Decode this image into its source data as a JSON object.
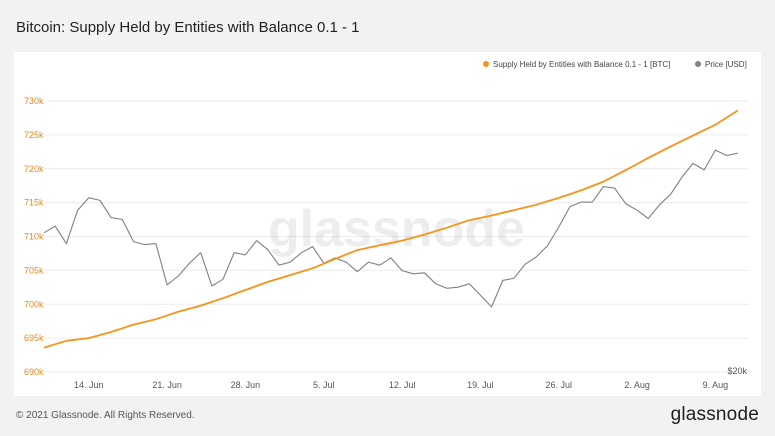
{
  "header": {
    "title": "Bitcoin: Supply Held by Entities with Balance 0.1 - 1"
  },
  "footer": {
    "copyright": "© 2021 Glassnode. All Rights Reserved.",
    "logo_text": "glassnode"
  },
  "watermark": "glassnode",
  "colors": {
    "supply": "#f7931a",
    "price": "#808080",
    "axis_left": "#e08a1e",
    "grid": "#ececec"
  },
  "chart_data": {
    "type": "line",
    "title": "Bitcoin: Supply Held by Entities with Balance 0.1 - 1",
    "legend_position": "top-right",
    "grid": true,
    "x_tick_labels": [
      "14. Jun",
      "21. Jun",
      "28. Jun",
      "5. Jul",
      "12. Jul",
      "19. Jul",
      "26. Jul",
      "2. Aug",
      "9. Aug"
    ],
    "x_range": [
      "2021-06-10",
      "2021-08-12"
    ],
    "y_left": {
      "ticks": [
        "690k",
        "695k",
        "700k",
        "705k",
        "710k",
        "715k",
        "720k",
        "725k",
        "730k"
      ],
      "range": [
        690000,
        730000
      ]
    },
    "y_right": {
      "ticks": [
        "$20k"
      ],
      "scale": "log"
    },
    "series": [
      {
        "name": "Supply Held by Entities with Balance 0.1 - 1 [BTC]",
        "axis": "left",
        "x": [
          "2021-06-10",
          "2021-06-12",
          "2021-06-14",
          "2021-06-16",
          "2021-06-18",
          "2021-06-20",
          "2021-06-22",
          "2021-06-24",
          "2021-06-26",
          "2021-06-28",
          "2021-06-30",
          "2021-07-02",
          "2021-07-04",
          "2021-07-06",
          "2021-07-08",
          "2021-07-10",
          "2021-07-12",
          "2021-07-14",
          "2021-07-16",
          "2021-07-18",
          "2021-07-20",
          "2021-07-22",
          "2021-07-24",
          "2021-07-26",
          "2021-07-28",
          "2021-07-30",
          "2021-08-01",
          "2021-08-03",
          "2021-08-05",
          "2021-08-07",
          "2021-08-09",
          "2021-08-11"
        ],
        "values": [
          693600,
          694600,
          695000,
          695900,
          697000,
          697800,
          698900,
          699800,
          700900,
          702100,
          703300,
          704300,
          705300,
          706700,
          708000,
          708700,
          709400,
          710300,
          711300,
          712400,
          713100,
          713900,
          714700,
          715700,
          716800,
          718100,
          719800,
          721600,
          723300,
          724900,
          726500,
          728600
        ]
      },
      {
        "name": "Price [USD]",
        "axis": "right",
        "x": [
          "2021-06-10",
          "2021-06-11",
          "2021-06-12",
          "2021-06-13",
          "2021-06-14",
          "2021-06-15",
          "2021-06-16",
          "2021-06-17",
          "2021-06-18",
          "2021-06-19",
          "2021-06-20",
          "2021-06-21",
          "2021-06-22",
          "2021-06-23",
          "2021-06-24",
          "2021-06-25",
          "2021-06-26",
          "2021-06-27",
          "2021-06-28",
          "2021-06-29",
          "2021-06-30",
          "2021-07-01",
          "2021-07-02",
          "2021-07-03",
          "2021-07-04",
          "2021-07-05",
          "2021-07-06",
          "2021-07-07",
          "2021-07-08",
          "2021-07-09",
          "2021-07-10",
          "2021-07-11",
          "2021-07-12",
          "2021-07-13",
          "2021-07-14",
          "2021-07-15",
          "2021-07-16",
          "2021-07-17",
          "2021-07-18",
          "2021-07-19",
          "2021-07-20",
          "2021-07-21",
          "2021-07-22",
          "2021-07-23",
          "2021-07-24",
          "2021-07-25",
          "2021-07-26",
          "2021-07-27",
          "2021-07-28",
          "2021-07-29",
          "2021-07-30",
          "2021-07-31",
          "2021-08-01",
          "2021-08-02",
          "2021-08-03",
          "2021-08-04",
          "2021-08-05",
          "2021-08-06",
          "2021-08-07",
          "2021-08-08",
          "2021-08-09",
          "2021-08-10",
          "2021-08-11"
        ],
        "values": [
          36700,
          37400,
          35600,
          39100,
          40500,
          40200,
          38300,
          38100,
          35800,
          35500,
          35600,
          31700,
          32500,
          33700,
          34700,
          31600,
          32200,
          34700,
          34500,
          35900,
          35000,
          33500,
          33800,
          34700,
          35300,
          33700,
          34200,
          33800,
          32900,
          33800,
          33500,
          34200,
          33000,
          32700,
          32800,
          31800,
          31400,
          31500,
          31800,
          30800,
          29800,
          32100,
          32300,
          33600,
          34300,
          35400,
          37300,
          39500,
          40000,
          40000,
          41800,
          41600,
          39800,
          39100,
          38200,
          39700,
          40900,
          42900,
          44600,
          43800,
          46300,
          45600,
          45900
        ]
      }
    ]
  }
}
